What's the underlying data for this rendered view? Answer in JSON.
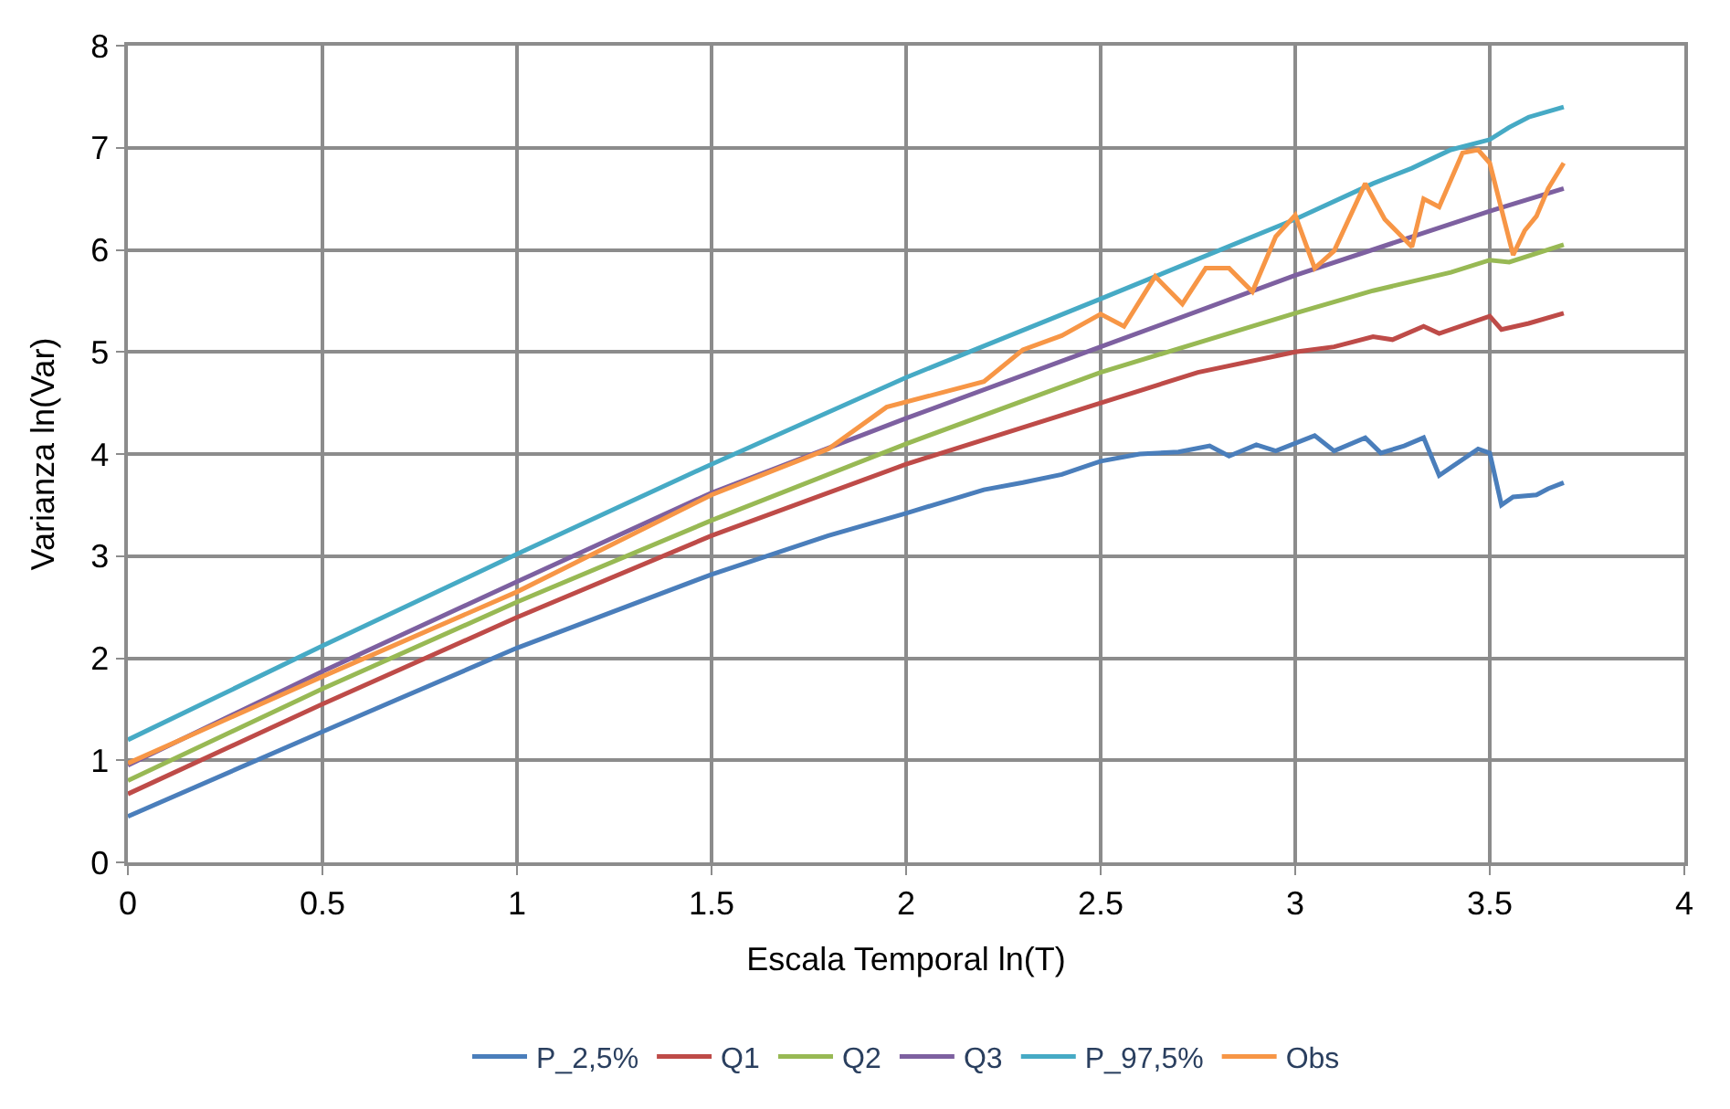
{
  "chart_data": {
    "type": "line",
    "xlabel": "Escala Temporal ln(T)",
    "ylabel": "Varianza ln(Var)",
    "xlim": [
      0,
      4
    ],
    "xticks": [
      0,
      0.5,
      1,
      1.5,
      2,
      2.5,
      3,
      3.5,
      4
    ],
    "ylim": [
      0,
      8
    ],
    "yticks": [
      0,
      1,
      2,
      3,
      4,
      5,
      6,
      7,
      8
    ],
    "grid": true,
    "legend": "bottom",
    "marker": "none",
    "line_style": "solid",
    "series": [
      {
        "name": "P_2,5%",
        "color": "#4a7ebb",
        "x": [
          0,
          0.5,
          1,
          1.5,
          1.8,
          2,
          2.2,
          2.3,
          2.4,
          2.5,
          2.6,
          2.7,
          2.78,
          2.83,
          2.9,
          2.95,
          3.05,
          3.1,
          3.18,
          3.22,
          3.28,
          3.33,
          3.37,
          3.47,
          3.5,
          3.53,
          3.56,
          3.62,
          3.65,
          3.69
        ],
        "values": [
          0.45,
          1.28,
          2.1,
          2.82,
          3.2,
          3.42,
          3.65,
          3.72,
          3.8,
          3.93,
          4.0,
          4.02,
          4.08,
          3.98,
          4.09,
          4.03,
          4.18,
          4.03,
          4.16,
          4.01,
          4.08,
          4.16,
          3.79,
          4.05,
          4.01,
          3.5,
          3.58,
          3.6,
          3.66,
          3.72
        ]
      },
      {
        "name": "Q1",
        "color": "#be4b48",
        "x": [
          0,
          0.5,
          1,
          1.5,
          2,
          2.5,
          2.75,
          3,
          3.1,
          3.2,
          3.25,
          3.33,
          3.37,
          3.5,
          3.53,
          3.6,
          3.69
        ],
        "values": [
          0.67,
          1.55,
          2.4,
          3.2,
          3.9,
          4.5,
          4.8,
          5.0,
          5.05,
          5.15,
          5.12,
          5.25,
          5.18,
          5.35,
          5.22,
          5.28,
          5.38
        ]
      },
      {
        "name": "Q2",
        "color": "#98b954",
        "x": [
          0,
          0.5,
          1,
          1.5,
          2,
          2.5,
          3,
          3.2,
          3.4,
          3.5,
          3.55,
          3.69
        ],
        "values": [
          0.8,
          1.7,
          2.55,
          3.35,
          4.1,
          4.8,
          5.38,
          5.6,
          5.78,
          5.9,
          5.88,
          6.05
        ]
      },
      {
        "name": "Q3",
        "color": "#7d60a0",
        "x": [
          0,
          0.5,
          1,
          1.5,
          2,
          2.5,
          3,
          3.5,
          3.69
        ],
        "values": [
          0.95,
          1.87,
          2.75,
          3.62,
          4.35,
          5.05,
          5.75,
          6.38,
          6.6
        ]
      },
      {
        "name": "P_97,5%",
        "color": "#46aac5",
        "x": [
          0,
          0.5,
          1,
          1.5,
          2,
          2.5,
          3,
          3.2,
          3.3,
          3.4,
          3.5,
          3.55,
          3.6,
          3.69
        ],
        "values": [
          1.2,
          2.12,
          3.02,
          3.9,
          4.75,
          5.52,
          6.3,
          6.65,
          6.8,
          6.98,
          7.08,
          7.2,
          7.3,
          7.4
        ]
      },
      {
        "name": "Obs",
        "color": "#f79646",
        "x": [
          0,
          0.5,
          1,
          1.5,
          1.8,
          1.95,
          2.2,
          2.3,
          2.4,
          2.5,
          2.56,
          2.64,
          2.71,
          2.77,
          2.83,
          2.89,
          2.95,
          3.0,
          3.05,
          3.1,
          3.18,
          3.23,
          3.3,
          3.33,
          3.37,
          3.43,
          3.47,
          3.5,
          3.56,
          3.59,
          3.62,
          3.65,
          3.69
        ],
        "values": [
          0.97,
          1.82,
          2.65,
          3.6,
          4.05,
          4.46,
          4.71,
          5.02,
          5.16,
          5.37,
          5.25,
          5.74,
          5.47,
          5.82,
          5.82,
          5.59,
          6.13,
          6.34,
          5.82,
          5.99,
          6.65,
          6.3,
          6.03,
          6.5,
          6.42,
          6.95,
          6.98,
          6.85,
          5.95,
          6.19,
          6.33,
          6.6,
          6.85
        ]
      }
    ]
  }
}
